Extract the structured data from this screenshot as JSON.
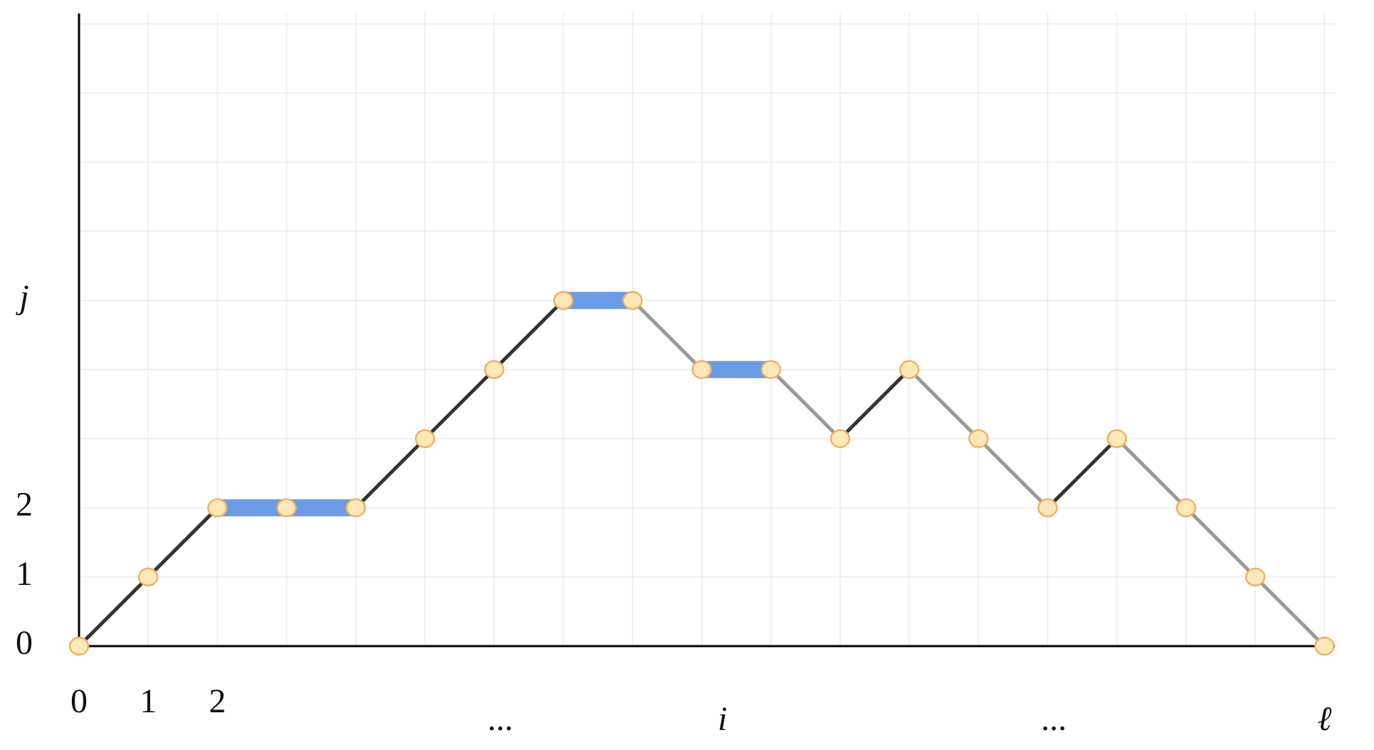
{
  "chart_data": {
    "type": "line",
    "x": [
      0,
      1,
      2,
      3,
      4,
      5,
      6,
      7,
      8,
      9,
      10,
      11,
      12,
      13,
      14,
      15,
      16,
      17,
      18
    ],
    "values": [
      0,
      1,
      2,
      2,
      2,
      3,
      4,
      5,
      5,
      4,
      4,
      3,
      4,
      3,
      2,
      3,
      2,
      1,
      0
    ],
    "xlim": [
      0,
      18.15
    ],
    "ylim": [
      0,
      9.15
    ],
    "xticks": [
      0,
      1,
      2,
      {
        "value": 6.1,
        "label": "..."
      },
      {
        "value": 9.3,
        "label": "i"
      },
      {
        "value": 14.1,
        "label": "..."
      },
      {
        "value": 18,
        "label": "ℓ"
      }
    ],
    "yticks": [
      0,
      1,
      2,
      {
        "value": 5,
        "label": "j"
      }
    ],
    "grid_x": [
      0,
      1,
      2,
      3,
      4,
      5,
      6,
      7,
      8,
      9,
      10,
      11,
      12,
      13,
      14,
      15,
      16,
      17,
      18
    ],
    "grid_y": [
      0,
      1,
      2,
      3,
      4,
      5,
      6,
      7,
      8,
      9
    ],
    "up_color": "#333333",
    "down_color": "#999999",
    "flat_color": "#6a9be6",
    "marker_fill": "#fde9b8",
    "marker_stroke": "#f0b060"
  }
}
